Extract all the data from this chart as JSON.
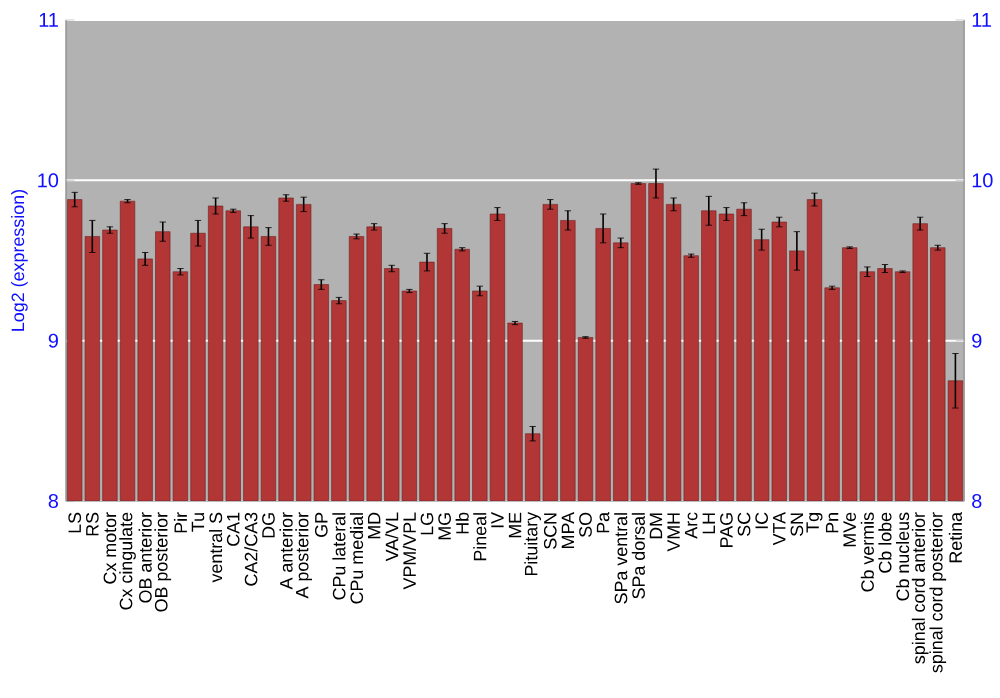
{
  "chart_data": {
    "type": "bar",
    "ylabel": "Log2 (expression)",
    "categories": [
      "LS",
      "RS",
      "Cx motor",
      "Cx cingulate",
      "OB anterior",
      "OB posterior",
      "Pir",
      "Tu",
      "ventral S",
      "CA1",
      "CA2/CA3",
      "DG",
      "A anterior",
      "A posterior",
      "GP",
      "CPu lateral",
      "CPu medial",
      "MD",
      "VA/VL",
      "VPM/VPL",
      "LG",
      "MG",
      "Hb",
      "Pineal",
      "IV",
      "ME",
      "Pituitary",
      "SCN",
      "MPA",
      "SO",
      "Pa",
      "SPa ventral",
      "SPa dorsal",
      "DM",
      "VMH",
      "Arc",
      "LH",
      "PAG",
      "SC",
      "IC",
      "VTA",
      "SN",
      "Tg",
      "Pn",
      "MVe",
      "Cb vermis",
      "Cb lobe",
      "Cb nucleus",
      "spinal cord anterior",
      "spinal cord posterior",
      "Retina"
    ],
    "values": [
      9.88,
      9.65,
      9.69,
      9.87,
      9.51,
      9.68,
      9.43,
      9.67,
      9.84,
      9.81,
      9.71,
      9.65,
      9.89,
      9.85,
      9.35,
      9.25,
      9.65,
      9.71,
      9.45,
      9.31,
      9.49,
      9.7,
      9.57,
      9.31,
      9.79,
      9.11,
      8.42,
      9.85,
      9.75,
      9.02,
      9.7,
      9.61,
      9.98,
      9.98,
      9.85,
      9.53,
      9.81,
      9.79,
      9.82,
      9.63,
      9.74,
      9.56,
      9.88,
      9.33,
      9.58,
      9.43,
      9.45,
      9.43,
      9.73,
      9.58,
      8.75
    ],
    "errors": [
      0.045,
      0.1,
      0.02,
      0.01,
      0.04,
      0.06,
      0.02,
      0.08,
      0.05,
      0.01,
      0.07,
      0.055,
      0.02,
      0.045,
      0.03,
      0.02,
      0.015,
      0.02,
      0.02,
      0.01,
      0.055,
      0.03,
      0.01,
      0.03,
      0.04,
      0.01,
      0.045,
      0.03,
      0.06,
      0.005,
      0.09,
      0.03,
      0.005,
      0.09,
      0.04,
      0.01,
      0.09,
      0.04,
      0.04,
      0.065,
      0.03,
      0.12,
      0.04,
      0.01,
      0.005,
      0.03,
      0.025,
      0.005,
      0.04,
      0.015,
      0.17
    ],
    "color": "#b33636",
    "ylim": [
      8,
      11
    ],
    "yticks": [
      8,
      9,
      10,
      11
    ],
    "y2lim": [
      8,
      11
    ],
    "y2ticks": [
      8,
      9,
      10,
      11
    ],
    "grid": "y"
  }
}
